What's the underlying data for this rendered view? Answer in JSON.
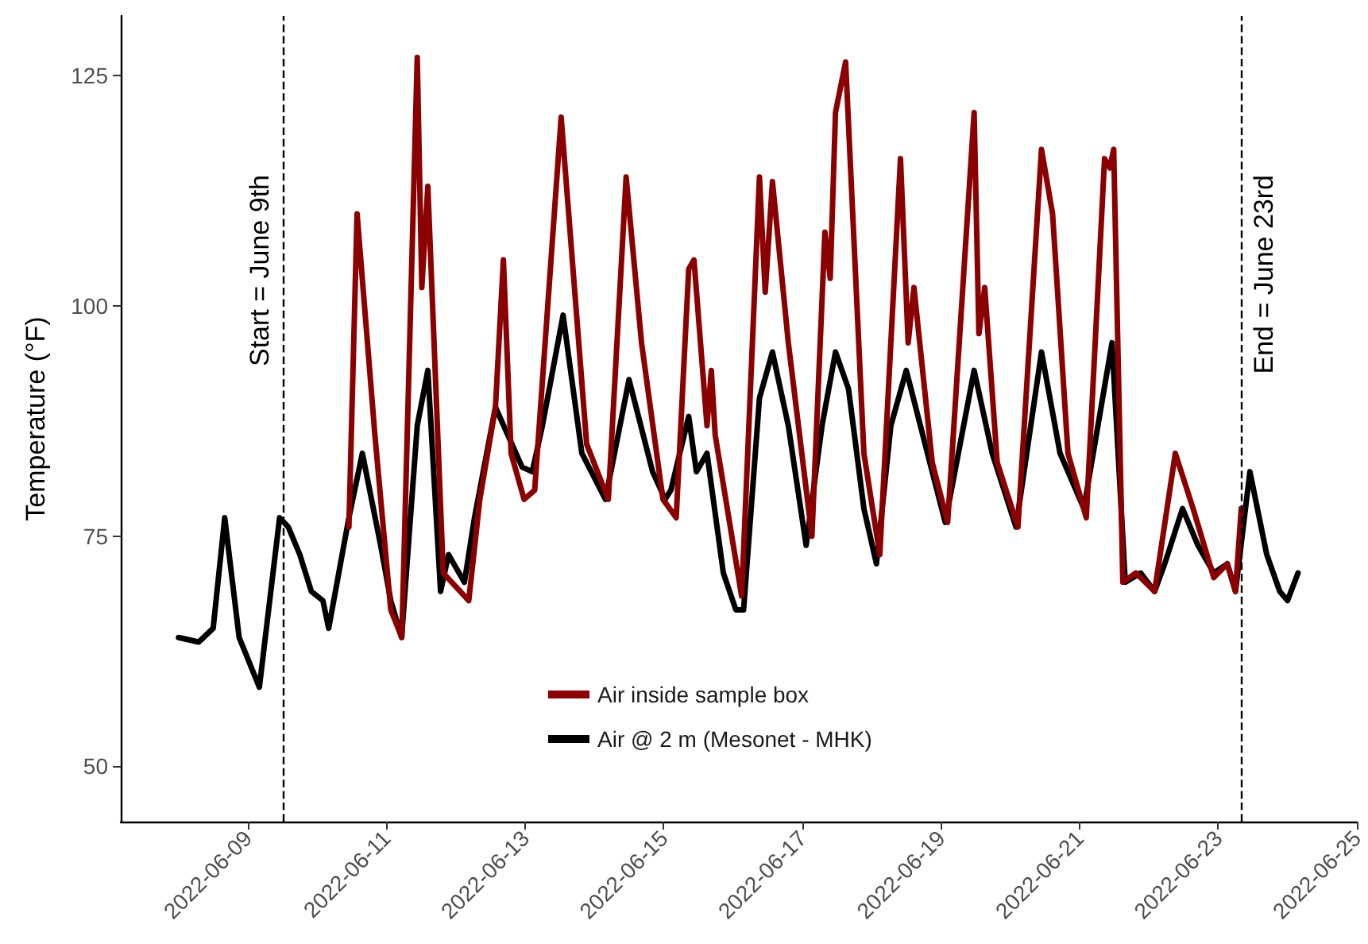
{
  "chart_data": {
    "type": "line",
    "ylabel": "Temperature (°F)",
    "xlim": [
      "2022-06-07T04:00",
      "2022-06-25T00:00"
    ],
    "xticks": [
      "2022-06-09",
      "2022-06-11",
      "2022-06-13",
      "2022-06-15",
      "2022-06-17",
      "2022-06-19",
      "2022-06-21",
      "2022-06-23",
      "2022-06-25"
    ],
    "ylim": [
      44,
      131.5
    ],
    "yticks": [
      50,
      75,
      100,
      125
    ],
    "grid": false,
    "legend": "bottom",
    "marker": "none",
    "line_style": "solid",
    "series": [
      {
        "name": "Air inside sample box",
        "color": "#8b0000",
        "x": [
          "2022-06-10T11:00",
          "2022-06-10T13:50",
          "2022-06-10T20:00",
          "2022-06-11T01:30",
          "2022-06-11T05:20",
          "2022-06-11T10:40",
          "2022-06-11T12:15",
          "2022-06-11T14:20",
          "2022-06-11T19:40",
          "2022-06-12T04:30",
          "2022-06-12T08:20",
          "2022-06-12T13:45",
          "2022-06-12T16:30",
          "2022-06-12T19:10",
          "2022-06-12T23:40",
          "2022-06-13T03:20",
          "2022-06-13T12:30",
          "2022-06-13T21:20",
          "2022-06-14T04:50",
          "2022-06-14T11:00",
          "2022-06-14T16:20",
          "2022-06-14T23:45",
          "2022-06-15T04:20",
          "2022-06-15T08:40",
          "2022-06-15T10:30",
          "2022-06-15T15:00",
          "2022-06-15T16:30",
          "2022-06-15T17:50",
          "2022-06-16T03:00",
          "2022-06-16T09:10",
          "2022-06-16T11:10",
          "2022-06-16T13:40",
          "2022-06-16T19:10",
          "2022-06-17T03:20",
          "2022-06-17T07:50",
          "2022-06-17T09:40",
          "2022-06-17T11:30",
          "2022-06-17T15:00",
          "2022-06-17T21:20",
          "2022-06-18T02:50",
          "2022-06-18T10:00",
          "2022-06-18T12:40",
          "2022-06-18T14:40",
          "2022-06-18T21:00",
          "2022-06-19T02:20",
          "2022-06-19T11:30",
          "2022-06-19T13:10",
          "2022-06-19T15:10",
          "2022-06-19T19:30",
          "2022-06-20T02:40",
          "2022-06-20T10:50",
          "2022-06-20T14:40",
          "2022-06-20T20:00",
          "2022-06-21T02:20",
          "2022-06-21T08:40",
          "2022-06-21T10:30",
          "2022-06-21T11:50",
          "2022-06-21T15:00",
          "2022-06-21T19:30",
          "2022-06-22T02:00",
          "2022-06-22T09:10",
          "2022-06-22T15:20",
          "2022-06-22T22:30",
          "2022-06-23T03:10",
          "2022-06-23T06:00",
          "2022-06-23T08:00"
        ],
        "values": [
          76,
          110,
          86,
          67,
          64,
          127,
          102,
          113,
          71,
          68,
          79,
          89,
          105,
          84,
          79,
          80,
          120.5,
          85,
          79,
          114,
          96,
          79,
          77,
          104,
          105,
          87,
          93,
          86,
          68.5,
          114,
          101.5,
          113.5,
          96,
          75,
          108,
          103,
          121,
          126.5,
          84,
          73,
          116,
          96,
          102,
          83,
          76.5,
          121,
          97,
          102,
          83,
          76,
          117,
          110,
          84,
          77,
          116,
          115,
          117,
          70,
          71,
          69,
          84,
          78,
          70.5,
          72,
          69,
          78
        ]
      },
      {
        "name": "Air @ 2 m (Mesonet - MHK)",
        "color": "#000000",
        "x": [
          "2022-06-08T00:00",
          "2022-06-08T07:00",
          "2022-06-08T12:00",
          "2022-06-08T16:00",
          "2022-06-08T21:00",
          "2022-06-09T04:00",
          "2022-06-09T11:00",
          "2022-06-09T14:00",
          "2022-06-09T18:00",
          "2022-06-09T22:00",
          "2022-06-10T02:00",
          "2022-06-10T04:00",
          "2022-06-10T07:30",
          "2022-06-10T11:00",
          "2022-06-10T15:40",
          "2022-06-10T22:00",
          "2022-06-11T01:30",
          "2022-06-11T05:15",
          "2022-06-11T10:40",
          "2022-06-11T14:20",
          "2022-06-11T18:45",
          "2022-06-11T21:30",
          "2022-06-12T03:00",
          "2022-06-12T06:30",
          "2022-06-12T13:45",
          "2022-06-12T23:00",
          "2022-06-13T02:30",
          "2022-06-13T06:00",
          "2022-06-13T13:10",
          "2022-06-13T19:40",
          "2022-06-14T03:50",
          "2022-06-14T12:00",
          "2022-06-14T20:10",
          "2022-06-15T00:30",
          "2022-06-15T02:30",
          "2022-06-15T08:40",
          "2022-06-15T11:20",
          "2022-06-15T15:00",
          "2022-06-15T20:40",
          "2022-06-16T01:00",
          "2022-06-16T03:40",
          "2022-06-16T09:10",
          "2022-06-16T13:40",
          "2022-06-16T19:10",
          "2022-06-17T01:20",
          "2022-06-17T06:50",
          "2022-06-17T11:30",
          "2022-06-17T16:00",
          "2022-06-17T21:20",
          "2022-06-18T01:40",
          "2022-06-18T06:40",
          "2022-06-18T12:00",
          "2022-06-18T20:10",
          "2022-06-19T01:30",
          "2022-06-19T11:30",
          "2022-06-19T17:45",
          "2022-06-20T02:00",
          "2022-06-20T10:50",
          "2022-06-20T17:15",
          "2022-06-21T01:30",
          "2022-06-21T11:15",
          "2022-06-21T15:50",
          "2022-06-21T21:10",
          "2022-06-22T02:00",
          "2022-06-22T05:30",
          "2022-06-22T11:40",
          "2022-06-22T17:00",
          "2022-06-22T22:30",
          "2022-06-23T03:10",
          "2022-06-23T06:00",
          "2022-06-23T11:00",
          "2022-06-23T16:50",
          "2022-06-23T21:20",
          "2022-06-24T00:00",
          "2022-06-24T03:40"
        ],
        "values": [
          64,
          63.5,
          65,
          77,
          64,
          58.6,
          77,
          76,
          73,
          69,
          68,
          65,
          71,
          77,
          84,
          74,
          68,
          64,
          87,
          93,
          69,
          73,
          70,
          77,
          89,
          82.5,
          82,
          87,
          99,
          84,
          79,
          92,
          82,
          79,
          80,
          88,
          82,
          84,
          71,
          67,
          67,
          90,
          95,
          87,
          74,
          87,
          95,
          91,
          78,
          72,
          87,
          93,
          83,
          76.5,
          93,
          84,
          76,
          95,
          84,
          78,
          96,
          70,
          71,
          69,
          72,
          78,
          74,
          71,
          72,
          69,
          82,
          73,
          69,
          68,
          71
        ]
      }
    ],
    "ref_lines": [
      {
        "axis": "x",
        "value": "2022-06-09T12:00",
        "label": "Start = June 9th",
        "color": "#000000",
        "line_style": "dashed"
      },
      {
        "axis": "x",
        "value": "2022-06-23T08:00",
        "label": "End = June 23rd",
        "color": "#000000",
        "line_style": "dashed"
      }
    ]
  }
}
